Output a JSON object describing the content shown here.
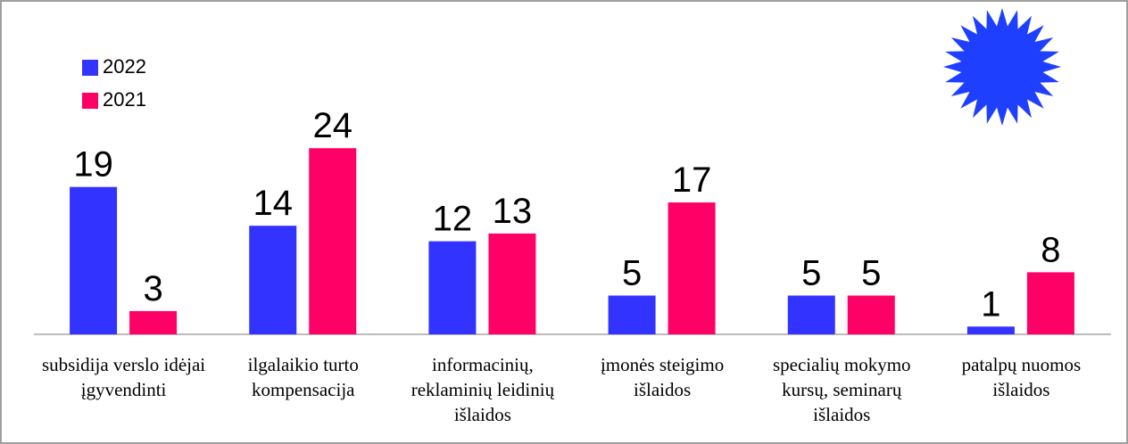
{
  "chart_data": {
    "type": "bar",
    "categories": [
      "subsidija verslo idėjai įgyvendinti",
      "ilgalaikio turto kompensacija",
      "informacinių, reklaminių leidinių išlaidos",
      "įmonės steigimo išlaidos",
      "specialių mokymo kursų, seminarų išlaidos",
      "patalpų nuomos išlaidos"
    ],
    "series": [
      {
        "name": "2022",
        "color": "#3333ff",
        "values": [
          19,
          14,
          12,
          5,
          5,
          1
        ]
      },
      {
        "name": "2021",
        "color": "#ff0066",
        "values": [
          3,
          24,
          13,
          17,
          5,
          8
        ]
      }
    ],
    "ylim": [
      0,
      40
    ],
    "grid": false,
    "legend": "top-left"
  }
}
